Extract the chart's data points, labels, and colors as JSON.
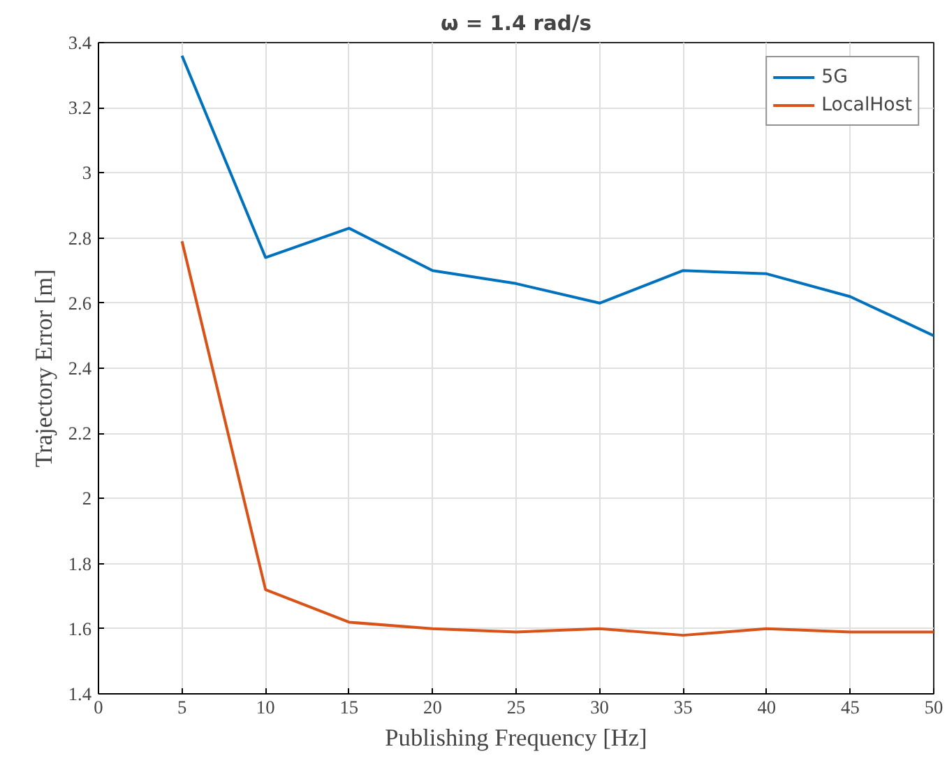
{
  "chart_data": {
    "type": "line",
    "title": "ω = 1.4 rad/s",
    "xlabel": "Publishing Frequency [Hz]",
    "ylabel": "Trajectory Error [m]",
    "x": [
      5,
      10,
      15,
      20,
      25,
      30,
      35,
      40,
      45,
      50
    ],
    "series": [
      {
        "name": "5G",
        "color": "#0072bd",
        "values": [
          3.36,
          2.74,
          2.83,
          2.7,
          2.66,
          2.6,
          2.7,
          2.69,
          2.62,
          2.5
        ]
      },
      {
        "name": "LocalHost",
        "color": "#d95319",
        "values": [
          2.79,
          1.72,
          1.62,
          1.6,
          1.59,
          1.6,
          1.58,
          1.6,
          1.59,
          1.59
        ]
      }
    ],
    "xlim": [
      0,
      50
    ],
    "ylim": [
      1.4,
      3.4
    ],
    "xticks": [
      0,
      5,
      10,
      15,
      20,
      25,
      30,
      35,
      40,
      45,
      50
    ],
    "yticks": [
      1.4,
      1.6,
      1.8,
      2,
      2.2,
      2.4,
      2.6,
      2.8,
      3,
      3.2,
      3.4
    ],
    "grid": true,
    "legend": "top right",
    "marker": "none",
    "line_style": "solid"
  }
}
